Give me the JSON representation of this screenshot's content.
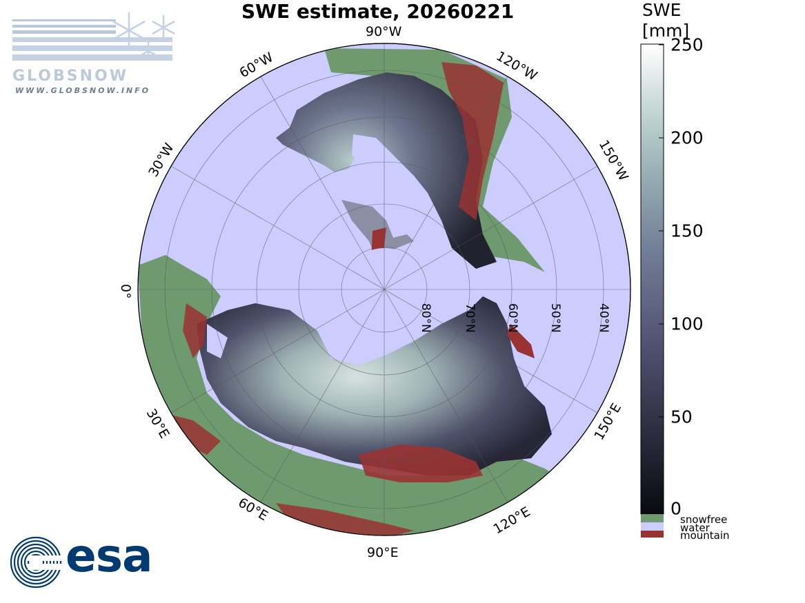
{
  "title": "SWE estimate, 20260221",
  "colorbar": {
    "title_line1": "SWE",
    "title_line2": "[mm]",
    "ticks": [
      "250",
      "200",
      "150",
      "100",
      "50",
      "0"
    ],
    "range": [
      0,
      250
    ],
    "colors": [
      "#0a0a10",
      "#2c2c3e",
      "#4f5070",
      "#707b95",
      "#96aeb4",
      "#c7dad6",
      "#ffffff"
    ]
  },
  "legend": [
    {
      "label": "snowfree",
      "color": "#6f9a6f"
    },
    {
      "label": "water",
      "color": "#ccccff"
    },
    {
      "label": "mountain",
      "color": "#993333"
    }
  ],
  "map": {
    "projection": "north polar stereographic",
    "longitude_labels": [
      "90°W",
      "120°W",
      "150°W",
      "60°W",
      "30°W",
      "0°",
      "30°E",
      "60°E",
      "90°E",
      "120°E",
      "150°E"
    ],
    "latitude_labels": [
      "80°N",
      "70°N",
      "60°N",
      "50°N",
      "40°N"
    ],
    "colors": {
      "water": "#ccccff",
      "snowfree": "#6f9a6f",
      "mountain": "#993333",
      "grid": "#555555"
    }
  },
  "logos": {
    "globsnow_word": "GLOBSNOW",
    "globsnow_url": "WWW.GLOBSNOW.INFO",
    "esa_word": "esa"
  }
}
